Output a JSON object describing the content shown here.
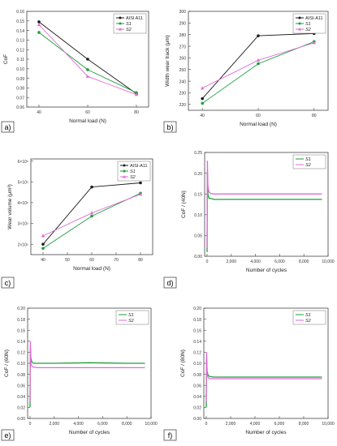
{
  "colors": {
    "AISI A11": "#1a1a1a",
    "S1": "#1f9e3a",
    "S2": "#e36ad8"
  },
  "chart_data": [
    {
      "panel": "a)",
      "type": "line",
      "xlabel": "Normal load (N)",
      "ylabel": "CoF",
      "xlim": [
        35,
        85
      ],
      "ylim": [
        0.06,
        0.16
      ],
      "xticks": [
        40,
        60,
        80
      ],
      "yticks": [
        0.06,
        0.07,
        0.08,
        0.09,
        0.1,
        0.11,
        0.12,
        0.13,
        0.14,
        0.15,
        0.16
      ],
      "ytick_labels": [
        "0.06",
        "0.07",
        "0.08",
        "0.09",
        "0.10",
        "0.11",
        "0.12",
        "0.13",
        "0.14",
        "0.15",
        "0.16"
      ],
      "legend": "top-right",
      "series": [
        {
          "name": "AISI A11",
          "x": [
            40,
            60,
            80
          ],
          "y": [
            0.149,
            0.11,
            0.074
          ]
        },
        {
          "name": "S1",
          "x": [
            40,
            60,
            80
          ],
          "y": [
            0.138,
            0.099,
            0.075
          ]
        },
        {
          "name": "S2",
          "x": [
            40,
            60,
            80
          ],
          "y": [
            0.146,
            0.092,
            0.073
          ]
        }
      ]
    },
    {
      "panel": "b)",
      "type": "line",
      "xlabel": "Normal load (N)",
      "ylabel": "Width wear track (μm)",
      "xlim": [
        35,
        85
      ],
      "ylim": [
        215,
        300
      ],
      "xticks": [
        40,
        60,
        80
      ],
      "yticks": [
        220,
        230,
        240,
        250,
        260,
        270,
        280,
        290,
        300
      ],
      "ytick_labels": [
        "220",
        "230",
        "240",
        "250",
        "260",
        "270",
        "280",
        "290",
        "300"
      ],
      "legend": "top-right",
      "series": [
        {
          "name": "AISI-A11",
          "x": [
            40,
            60,
            80
          ],
          "y": [
            225,
            279,
            281
          ]
        },
        {
          "name": "S1",
          "x": [
            40,
            60,
            80
          ],
          "y": [
            221,
            255,
            274
          ]
        },
        {
          "name": "S2",
          "x": [
            40,
            60,
            80
          ],
          "y": [
            234,
            258,
            273
          ]
        }
      ]
    },
    {
      "panel": "c)",
      "type": "line",
      "xlabel": "Normal load (N)",
      "ylabel": "Wear volume (μm³)",
      "xlim": [
        35,
        85
      ],
      "ylim": [
        150000,
        610000
      ],
      "xticks": [
        40,
        50,
        60,
        70,
        80
      ],
      "yticks": [
        200000,
        300000,
        400000,
        500000,
        600000
      ],
      "ytick_labels": [
        "2×10⁵",
        "3×10⁵",
        "4×10⁵",
        "5×10⁵",
        "6×10⁵"
      ],
      "legend": "top-right",
      "series": [
        {
          "name": "AISI-A11",
          "x": [
            40,
            60,
            80
          ],
          "y": [
            200000,
            475000,
            495000
          ]
        },
        {
          "name": "S1",
          "x": [
            40,
            60,
            80
          ],
          "y": [
            180000,
            335000,
            445000
          ]
        },
        {
          "name": "S2",
          "x": [
            40,
            60,
            80
          ],
          "y": [
            240000,
            350000,
            440000
          ]
        }
      ]
    },
    {
      "panel": "d)",
      "type": "line",
      "xlabel": "Number of cycles",
      "ylabel": "CoF / (40N)",
      "xlim": [
        -200,
        10000
      ],
      "ylim": [
        0,
        0.25
      ],
      "xticks": [
        0,
        2000,
        4000,
        6000,
        8000,
        10000
      ],
      "xtick_labels": [
        "0",
        "2,000",
        "4,000",
        "6,000",
        "8,000",
        "10,000"
      ],
      "yticks": [
        0,
        0.05,
        0.1,
        0.15,
        0.2,
        0.25
      ],
      "ytick_labels": [
        "0.00",
        "0.05",
        "0.10",
        "0.15",
        "0.20",
        "0.25"
      ],
      "legend": "top-right",
      "series": [
        {
          "name": "S1",
          "x": [
            0,
            30,
            70,
            150,
            300,
            600,
            2000,
            5000,
            8000,
            9500
          ],
          "y": [
            0.01,
            0.2,
            0.15,
            0.14,
            0.139,
            0.137,
            0.137,
            0.137,
            0.137,
            0.137
          ]
        },
        {
          "name": "S2",
          "x": [
            0,
            30,
            70,
            150,
            300,
            600,
            2000,
            5000,
            8000,
            9500
          ],
          "y": [
            0.02,
            0.23,
            0.17,
            0.155,
            0.151,
            0.15,
            0.15,
            0.15,
            0.15,
            0.15
          ]
        }
      ]
    },
    {
      "panel": "e)",
      "type": "line",
      "xlabel": "Number of cycles",
      "ylabel": "CoF / (60N)",
      "xlim": [
        -200,
        10000
      ],
      "ylim": [
        0,
        0.2
      ],
      "xticks": [
        0,
        2000,
        4000,
        6000,
        8000,
        10000
      ],
      "xtick_labels": [
        "0",
        "2,000",
        "4,000",
        "6,000",
        "8,000",
        "10,000"
      ],
      "yticks": [
        0,
        0.02,
        0.04,
        0.06,
        0.08,
        0.1,
        0.12,
        0.14,
        0.16,
        0.18,
        0.2
      ],
      "ytick_labels": [
        "0.00",
        "0.02",
        "0.04",
        "0.06",
        "0.08",
        "0.10",
        "0.12",
        "0.14",
        "0.16",
        "0.18",
        "0.20"
      ],
      "legend": "top-right",
      "series": [
        {
          "name": "S1",
          "x": [
            0,
            30,
            70,
            150,
            300,
            600,
            2000,
            5000,
            8000,
            9500
          ],
          "y": [
            0.02,
            0.13,
            0.11,
            0.102,
            0.1,
            0.1,
            0.1,
            0.101,
            0.1,
            0.1
          ]
        },
        {
          "name": "S2",
          "x": [
            0,
            30,
            70,
            150,
            300,
            600,
            2000,
            5000,
            8000,
            9500
          ],
          "y": [
            0.03,
            0.14,
            0.1,
            0.095,
            0.093,
            0.092,
            0.092,
            0.092,
            0.092,
            0.092
          ]
        }
      ]
    },
    {
      "panel": "f)",
      "type": "line",
      "xlabel": "Number of cycles",
      "ylabel": "CoF / (80N)",
      "xlim": [
        -200,
        10000
      ],
      "ylim": [
        0,
        0.2
      ],
      "xticks": [
        0,
        2000,
        4000,
        6000,
        8000,
        10000
      ],
      "xtick_labels": [
        "0",
        "2,000",
        "4,000",
        "6,000",
        "8,000",
        "10,000"
      ],
      "yticks": [
        0,
        0.02,
        0.04,
        0.06,
        0.08,
        0.1,
        0.12,
        0.14,
        0.16,
        0.18,
        0.2
      ],
      "ytick_labels": [
        "0.00",
        "0.02",
        "0.04",
        "0.06",
        "0.08",
        "0.10",
        "0.12",
        "0.14",
        "0.16",
        "0.18",
        "0.20"
      ],
      "legend": "top-right",
      "series": [
        {
          "name": "S1",
          "x": [
            0,
            30,
            70,
            150,
            300,
            600,
            2000,
            5000,
            8000,
            9500
          ],
          "y": [
            0.02,
            0.11,
            0.085,
            0.078,
            0.076,
            0.075,
            0.075,
            0.075,
            0.075,
            0.075
          ]
        },
        {
          "name": "S2",
          "x": [
            0,
            30,
            70,
            150,
            300,
            600,
            2000,
            5000,
            8000,
            9500
          ],
          "y": [
            0.03,
            0.12,
            0.08,
            0.074,
            0.072,
            0.072,
            0.072,
            0.072,
            0.072,
            0.072
          ]
        }
      ]
    }
  ]
}
